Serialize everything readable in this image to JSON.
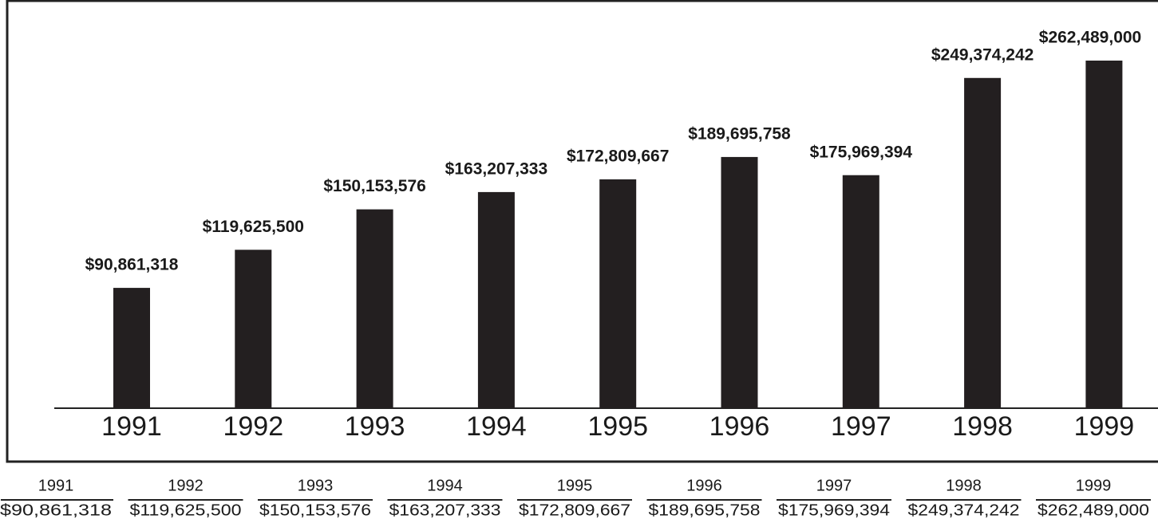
{
  "chart_data": {
    "type": "bar",
    "categories": [
      "1991",
      "1992",
      "1993",
      "1994",
      "1995",
      "1996",
      "1997",
      "1998",
      "1999"
    ],
    "values": [
      90861318,
      119625500,
      150153576,
      163207333,
      172809667,
      189695758,
      175969394,
      249374242,
      262489000
    ],
    "value_labels": [
      "$90,861,318",
      "$119,625,500",
      "$150,153,576",
      "$163,207,333",
      "$172,809,667",
      "$189,695,758",
      "$175,969,394",
      "$249,374,242",
      "$262,489,000"
    ],
    "color": "#231f20"
  }
}
